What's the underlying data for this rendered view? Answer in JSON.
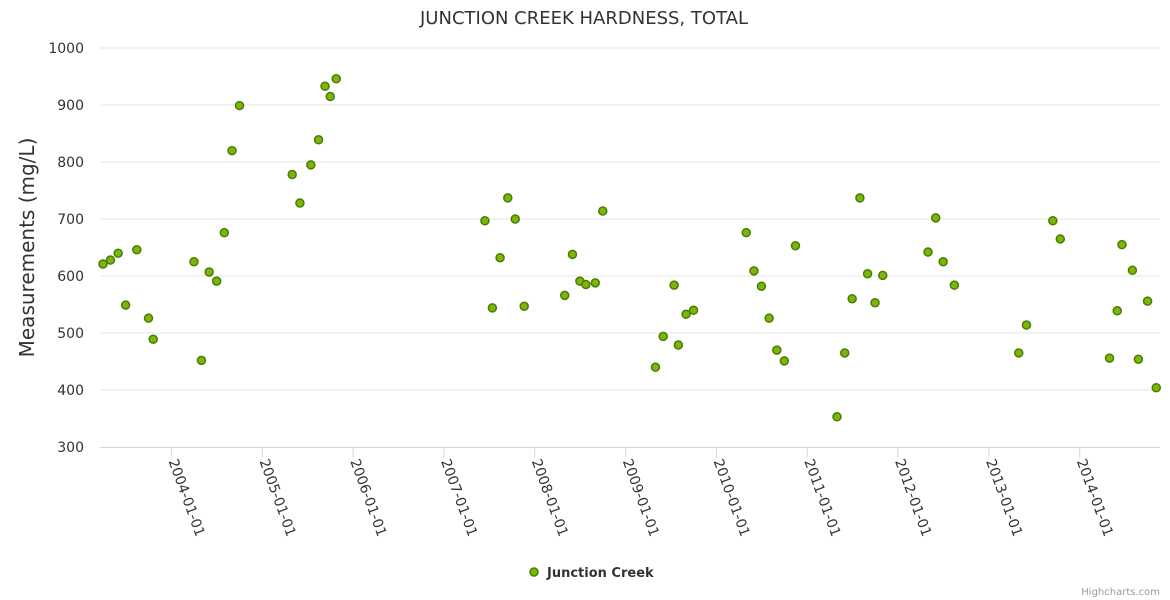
{
  "credits": "Highcharts.com",
  "chart_data": {
    "type": "scatter",
    "title": "JUNCTION CREEK HARDNESS, TOTAL",
    "ylabel": "Measurements (mg/L)",
    "xlabel": "",
    "ylim": [
      300,
      1000
    ],
    "yticks": [
      300,
      400,
      500,
      600,
      700,
      800,
      900,
      1000
    ],
    "xlim": [
      "2003-03-20",
      "2014-11-20"
    ],
    "xticks": [
      "2004-01-01",
      "2005-01-01",
      "2006-01-01",
      "2007-01-01",
      "2008-01-01",
      "2009-01-01",
      "2010-01-01",
      "2011-01-01",
      "2012-01-01",
      "2013-01-01",
      "2014-01-01"
    ],
    "grid": true,
    "legend_position": "bottom-center",
    "colors": {
      "marker_fill": "#7cb50e",
      "marker_stroke": "#4a7d00",
      "grid": "#e6e6e6",
      "axis": "#ccd6eb"
    },
    "series": [
      {
        "name": "Junction Creek",
        "points": [
          [
            "2003-04-01",
            621
          ],
          [
            "2003-05-01",
            628
          ],
          [
            "2003-06-01",
            640
          ],
          [
            "2003-07-01",
            549
          ],
          [
            "2003-08-15",
            646
          ],
          [
            "2003-10-01",
            526
          ],
          [
            "2003-10-20",
            489
          ],
          [
            "2004-04-01",
            625
          ],
          [
            "2004-05-01",
            452
          ],
          [
            "2004-06-01",
            607
          ],
          [
            "2004-07-01",
            591
          ],
          [
            "2004-08-01",
            676
          ],
          [
            "2004-09-01",
            820
          ],
          [
            "2004-10-01",
            899
          ],
          [
            "2005-05-01",
            778
          ],
          [
            "2005-06-01",
            728
          ],
          [
            "2005-07-15",
            795
          ],
          [
            "2005-08-15",
            839
          ],
          [
            "2005-09-10",
            933
          ],
          [
            "2005-10-01",
            915
          ],
          [
            "2005-10-25",
            946
          ],
          [
            "2007-06-15",
            697
          ],
          [
            "2007-07-15",
            544
          ],
          [
            "2007-08-15",
            632
          ],
          [
            "2007-09-15",
            737
          ],
          [
            "2007-10-15",
            700
          ],
          [
            "2007-11-20",
            547
          ],
          [
            "2008-05-01",
            566
          ],
          [
            "2008-06-01",
            638
          ],
          [
            "2008-07-01",
            591
          ],
          [
            "2008-07-25",
            585
          ],
          [
            "2008-09-01",
            588
          ],
          [
            "2008-10-01",
            714
          ],
          [
            "2009-05-01",
            440
          ],
          [
            "2009-06-01",
            494
          ],
          [
            "2009-07-15",
            584
          ],
          [
            "2009-08-01",
            479
          ],
          [
            "2009-09-01",
            533
          ],
          [
            "2009-10-01",
            540
          ],
          [
            "2010-05-01",
            676
          ],
          [
            "2010-06-01",
            609
          ],
          [
            "2010-07-01",
            582
          ],
          [
            "2010-08-01",
            526
          ],
          [
            "2010-09-01",
            470
          ],
          [
            "2010-10-01",
            451
          ],
          [
            "2010-11-15",
            653
          ],
          [
            "2011-05-01",
            353
          ],
          [
            "2011-06-01",
            465
          ],
          [
            "2011-07-01",
            560
          ],
          [
            "2011-08-01",
            737
          ],
          [
            "2011-09-01",
            604
          ],
          [
            "2011-10-01",
            553
          ],
          [
            "2011-11-01",
            601
          ],
          [
            "2012-05-01",
            642
          ],
          [
            "2012-06-01",
            702
          ],
          [
            "2012-07-01",
            625
          ],
          [
            "2012-08-15",
            584
          ],
          [
            "2013-05-01",
            465
          ],
          [
            "2013-06-01",
            514
          ],
          [
            "2013-09-15",
            697
          ],
          [
            "2013-10-15",
            665
          ],
          [
            "2014-05-01",
            456
          ],
          [
            "2014-06-01",
            539
          ],
          [
            "2014-06-20",
            655
          ],
          [
            "2014-08-01",
            610
          ],
          [
            "2014-08-25",
            454
          ],
          [
            "2014-10-01",
            556
          ],
          [
            "2014-11-05",
            404
          ]
        ]
      }
    ]
  }
}
